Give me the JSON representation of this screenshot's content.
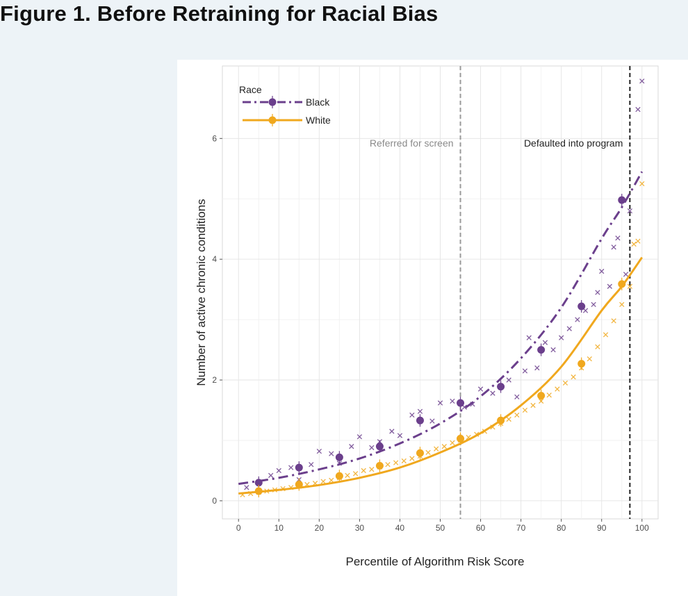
{
  "page": {
    "title": "Figure 1. Before Retraining for Racial Bias"
  },
  "colors": {
    "page_background": "#edf3f7",
    "panel_background": "#ffffff",
    "black_series": "#6b3f8c",
    "white_series": "#f0a81e",
    "vline_screen": "#9a9a9a",
    "vline_default": "#222222"
  },
  "chart_data": {
    "type": "scatter",
    "xlabel": "Percentile of Algorithm Risk Score",
    "ylabel": "Number of active chronic conditions",
    "xlim": [
      -4,
      104
    ],
    "ylim": [
      -0.3,
      7.2
    ],
    "xticks": [
      0,
      10,
      20,
      30,
      40,
      50,
      60,
      70,
      80,
      90,
      100
    ],
    "yticks": [
      0,
      2,
      4,
      6
    ],
    "grid": true,
    "legend": {
      "title": "Race",
      "position": "top-left"
    },
    "vlines": [
      {
        "x": 55,
        "label": "Referred for screen",
        "style": "dashed",
        "color": "#9a9a9a"
      },
      {
        "x": 97,
        "label": "Defaulted into program",
        "style": "dashed",
        "color": "#222222"
      }
    ],
    "series": [
      {
        "name": "Black",
        "color": "#6b3f8c",
        "line_style": "dashdot",
        "bin_means": {
          "x": [
            5,
            15,
            25,
            35,
            45,
            55,
            65,
            75,
            85,
            95
          ],
          "y": [
            0.3,
            0.55,
            0.72,
            0.9,
            1.33,
            1.62,
            1.89,
            2.5,
            3.22,
            4.98
          ]
        },
        "fit": {
          "x": [
            0,
            10,
            20,
            30,
            40,
            50,
            60,
            70,
            80,
            90,
            95,
            100
          ],
          "y": [
            0.28,
            0.38,
            0.52,
            0.7,
            0.95,
            1.28,
            1.73,
            2.36,
            3.2,
            4.34,
            4.86,
            5.45
          ]
        },
        "percentile_points": {
          "x": [
            2,
            5,
            8,
            10,
            13,
            15,
            18,
            20,
            23,
            25,
            28,
            30,
            33,
            35,
            38,
            40,
            43,
            45,
            48,
            50,
            53,
            56,
            58,
            60,
            63,
            65,
            67,
            69,
            71,
            72,
            74,
            76,
            78,
            80,
            82,
            84,
            86,
            88,
            89,
            90,
            92,
            93,
            94,
            96,
            97,
            99,
            100
          ],
          "y": [
            0.22,
            0.3,
            0.42,
            0.5,
            0.55,
            0.35,
            0.6,
            0.82,
            0.78,
            0.62,
            0.9,
            1.06,
            0.88,
            0.98,
            1.15,
            1.08,
            1.42,
            1.48,
            1.32,
            1.62,
            1.65,
            1.55,
            1.6,
            1.85,
            1.78,
            1.88,
            2.0,
            1.72,
            2.15,
            2.7,
            2.2,
            2.62,
            2.5,
            2.7,
            2.85,
            3.0,
            3.15,
            3.25,
            3.45,
            3.8,
            3.55,
            4.2,
            4.35,
            3.75,
            4.8,
            6.48,
            6.95
          ]
        }
      },
      {
        "name": "White",
        "color": "#f0a81e",
        "line_style": "solid",
        "bin_means": {
          "x": [
            5,
            15,
            25,
            35,
            45,
            55,
            65,
            75,
            85,
            95
          ],
          "y": [
            0.16,
            0.27,
            0.41,
            0.58,
            0.79,
            1.03,
            1.33,
            1.74,
            2.27,
            3.59
          ]
        },
        "fit": {
          "x": [
            0,
            10,
            20,
            30,
            40,
            50,
            60,
            70,
            80,
            90,
            95,
            100
          ],
          "y": [
            0.12,
            0.18,
            0.26,
            0.38,
            0.55,
            0.8,
            1.12,
            1.58,
            2.22,
            3.15,
            3.55,
            4.03
          ]
        },
        "percentile_points": {
          "x": [
            1,
            3,
            5,
            7,
            9,
            11,
            13,
            15,
            17,
            19,
            21,
            23,
            25,
            27,
            29,
            31,
            33,
            35,
            37,
            39,
            41,
            43,
            45,
            47,
            49,
            51,
            53,
            55,
            57,
            59,
            61,
            63,
            65,
            67,
            69,
            71,
            73,
            75,
            77,
            79,
            81,
            83,
            85,
            87,
            89,
            91,
            93,
            95,
            97,
            98,
            99,
            100
          ],
          "y": [
            0.1,
            0.12,
            0.14,
            0.16,
            0.18,
            0.2,
            0.22,
            0.24,
            0.27,
            0.29,
            0.32,
            0.34,
            0.38,
            0.42,
            0.45,
            0.5,
            0.52,
            0.56,
            0.6,
            0.63,
            0.66,
            0.7,
            0.74,
            0.8,
            0.86,
            0.9,
            0.96,
            1.0,
            1.05,
            1.1,
            1.15,
            1.22,
            1.28,
            1.35,
            1.42,
            1.5,
            1.58,
            1.65,
            1.75,
            1.85,
            1.95,
            2.05,
            2.2,
            2.35,
            2.55,
            2.75,
            2.98,
            3.25,
            3.55,
            4.25,
            4.3,
            5.25
          ]
        }
      }
    ]
  }
}
